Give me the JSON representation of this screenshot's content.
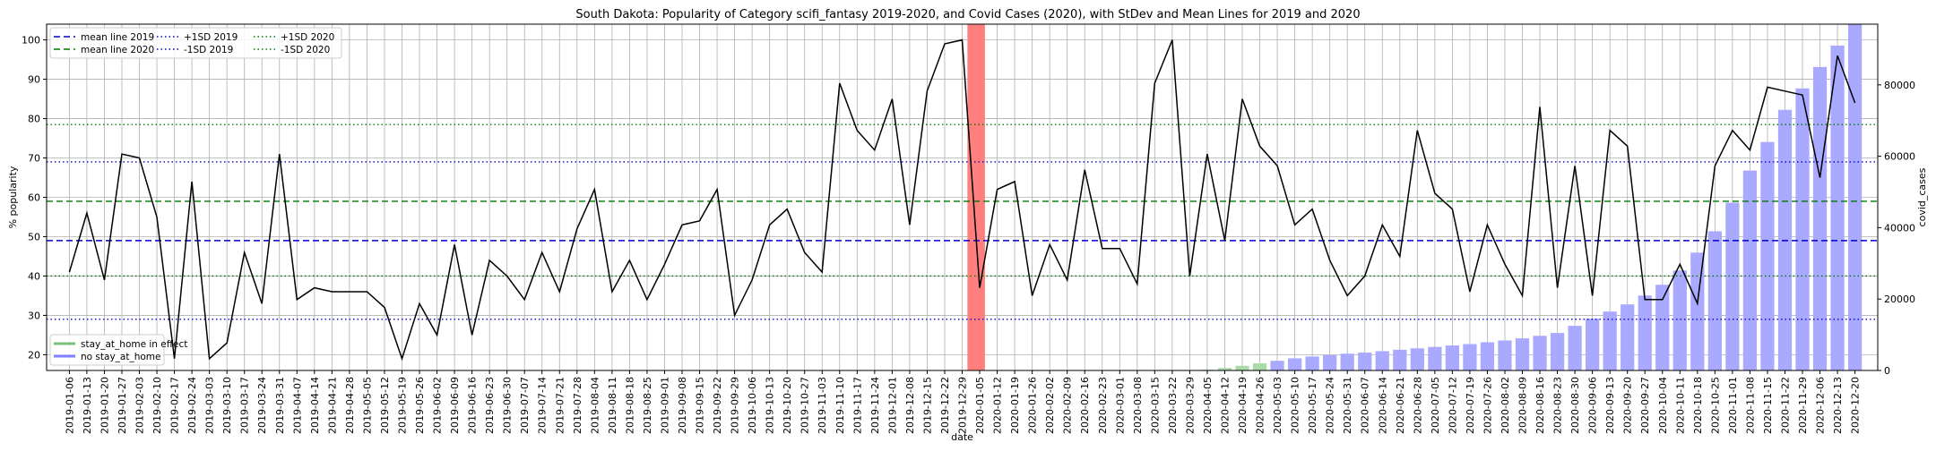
{
  "chart_data": {
    "type": "line",
    "title": "South Dakota: Popularity of Category scifi_fantasy 2019-2020, and Covid Cases (2020), with StDev and Mean Lines for 2019 and 2020",
    "xlabel": "date",
    "ylabel": "% popularity",
    "y2label": "covid_cases",
    "ylim": [
      16,
      104
    ],
    "y2lim": [
      0,
      97000
    ],
    "yticks": [
      20,
      30,
      40,
      50,
      60,
      70,
      80,
      90,
      100
    ],
    "y2ticks": [
      0,
      20000,
      40000,
      60000,
      80000
    ],
    "x": [
      "2019-01-06",
      "2019-01-13",
      "2019-01-20",
      "2019-01-27",
      "2019-02-03",
      "2019-02-10",
      "2019-02-17",
      "2019-02-24",
      "2019-03-03",
      "2019-03-10",
      "2019-03-17",
      "2019-03-24",
      "2019-03-31",
      "2019-04-07",
      "2019-04-14",
      "2019-04-21",
      "2019-04-28",
      "2019-05-05",
      "2019-05-12",
      "2019-05-19",
      "2019-05-26",
      "2019-06-02",
      "2019-06-09",
      "2019-06-16",
      "2019-06-23",
      "2019-06-30",
      "2019-07-07",
      "2019-07-14",
      "2019-07-21",
      "2019-07-28",
      "2019-08-04",
      "2019-08-11",
      "2019-08-18",
      "2019-08-25",
      "2019-09-01",
      "2019-09-08",
      "2019-09-15",
      "2019-09-22",
      "2019-09-29",
      "2019-10-06",
      "2019-10-13",
      "2019-10-20",
      "2019-10-27",
      "2019-11-03",
      "2019-11-10",
      "2019-11-17",
      "2019-11-24",
      "2019-12-01",
      "2019-12-08",
      "2019-12-15",
      "2019-12-22",
      "2019-12-29",
      "2020-01-05",
      "2020-01-12",
      "2020-01-19",
      "2020-01-26",
      "2020-02-02",
      "2020-02-09",
      "2020-02-16",
      "2020-02-23",
      "2020-03-01",
      "2020-03-08",
      "2020-03-15",
      "2020-03-22",
      "2020-03-29",
      "2020-04-05",
      "2020-04-12",
      "2020-04-19",
      "2020-04-26",
      "2020-05-03",
      "2020-05-10",
      "2020-05-17",
      "2020-05-24",
      "2020-05-31",
      "2020-06-07",
      "2020-06-14",
      "2020-06-21",
      "2020-06-28",
      "2020-07-05",
      "2020-07-12",
      "2020-07-19",
      "2020-07-26",
      "2020-08-02",
      "2020-08-09",
      "2020-08-16",
      "2020-08-23",
      "2020-08-30",
      "2020-09-06",
      "2020-09-13",
      "2020-09-20",
      "2020-09-27",
      "2020-10-04",
      "2020-10-11",
      "2020-10-18",
      "2020-10-25",
      "2020-11-01",
      "2020-11-08",
      "2020-11-15",
      "2020-11-22",
      "2020-11-29",
      "2020-12-06",
      "2020-12-13",
      "2020-12-20"
    ],
    "popularity": [
      41,
      56,
      39,
      71,
      70,
      55,
      19,
      64,
      19,
      23,
      46,
      33,
      71,
      34,
      37,
      36,
      36,
      36,
      32,
      19,
      33,
      25,
      48,
      25,
      44,
      40,
      34,
      46,
      36,
      52,
      62,
      36,
      44,
      34,
      43,
      53,
      54,
      62,
      30,
      39,
      53,
      57,
      46,
      41,
      89,
      77,
      72,
      85,
      53,
      87,
      99,
      100,
      37,
      62,
      64,
      35,
      48,
      39,
      67,
      47,
      47,
      38,
      89,
      100,
      40,
      71,
      49,
      85,
      73,
      68,
      53,
      57,
      44,
      35,
      40,
      53,
      45,
      77,
      61,
      57,
      36,
      53,
      43,
      35,
      83,
      37,
      68,
      35,
      77,
      73,
      34,
      34,
      43,
      33,
      68,
      77,
      72,
      88,
      87,
      86,
      65,
      96,
      84
    ],
    "covid_cases": [
      0,
      0,
      0,
      0,
      0,
      0,
      0,
      0,
      0,
      0,
      0,
      0,
      0,
      0,
      0,
      0,
      0,
      0,
      0,
      0,
      0,
      0,
      0,
      0,
      0,
      0,
      0,
      0,
      0,
      0,
      0,
      0,
      0,
      0,
      0,
      0,
      0,
      0,
      0,
      0,
      0,
      0,
      0,
      0,
      0,
      0,
      0,
      0,
      0,
      0,
      0,
      0,
      0,
      0,
      0,
      0,
      0,
      0,
      0,
      0,
      0,
      0,
      0,
      0,
      0,
      200,
      700,
      1300,
      2000,
      2700,
      3400,
      3900,
      4300,
      4700,
      5000,
      5400,
      5800,
      6200,
      6600,
      7000,
      7400,
      7900,
      8400,
      9000,
      9700,
      10500,
      12500,
      14500,
      16500,
      18500,
      21000,
      24000,
      28000,
      33000,
      39000,
      47000,
      56000,
      64000,
      73000,
      79000,
      85000,
      91000,
      97000
    ],
    "stay_at_home": [
      0,
      0,
      0,
      0,
      0,
      0,
      0,
      0,
      0,
      0,
      0,
      0,
      0,
      0,
      0,
      0,
      0,
      0,
      0,
      0,
      0,
      0,
      0,
      0,
      0,
      0,
      0,
      0,
      0,
      0,
      0,
      0,
      0,
      0,
      0,
      0,
      0,
      0,
      0,
      0,
      0,
      0,
      0,
      0,
      0,
      0,
      0,
      0,
      0,
      0,
      0,
      0,
      0,
      0,
      0,
      0,
      0,
      0,
      0,
      0,
      0,
      0,
      0,
      0,
      0,
      1,
      1,
      1,
      1,
      0,
      0,
      0,
      0,
      0,
      0,
      0,
      0,
      0,
      0,
      0,
      0,
      0,
      0,
      0,
      0,
      0,
      0,
      0,
      0,
      0,
      0,
      0,
      0,
      0,
      0,
      0,
      0,
      0,
      0,
      0,
      0,
      0,
      0
    ],
    "highlight_date": "2019-12-29",
    "reference_lines": [
      {
        "name": "mean line 2019",
        "value": 49,
        "color": "#0000cc",
        "style": "dashed"
      },
      {
        "name": "mean line 2020",
        "value": 59,
        "color": "#007700",
        "style": "dashed"
      },
      {
        "name": "+1SD 2019",
        "value": 69,
        "color": "#0000cc",
        "style": "dotted"
      },
      {
        "name": "-1SD 2019",
        "value": 29,
        "color": "#0000cc",
        "style": "dotted"
      },
      {
        "name": "+1SD 2020",
        "value": 78.5,
        "color": "#007700",
        "style": "dotted"
      },
      {
        "name": "-1SD 2020",
        "value": 40,
        "color": "#007700",
        "style": "dotted"
      }
    ],
    "legend_lines": [
      {
        "name": "mean line 2019",
        "color": "#0000cc",
        "style": "dashed"
      },
      {
        "name": "mean line 2020",
        "color": "#007700",
        "style": "dashed"
      },
      {
        "name": "+1SD 2019",
        "color": "#0000cc",
        "style": "dotted"
      },
      {
        "name": "-1SD 2019",
        "color": "#0000cc",
        "style": "dotted"
      },
      {
        "name": "+1SD 2020",
        "color": "#007700",
        "style": "dotted"
      },
      {
        "name": "-1SD 2020",
        "color": "#007700",
        "style": "dotted"
      }
    ],
    "legend_bars": [
      {
        "name": "stay_at_home in effect",
        "color": "#7fbf7f"
      },
      {
        "name": "no stay_at_home",
        "color": "#7f7fff"
      }
    ],
    "legend_position": "upper-left",
    "grid": true,
    "colors": {
      "popularity_line": "#000000",
      "highlight": "#ff7f7f",
      "bar_no_stay": "#a9a9ff",
      "bar_stay": "#a9dca9"
    }
  }
}
